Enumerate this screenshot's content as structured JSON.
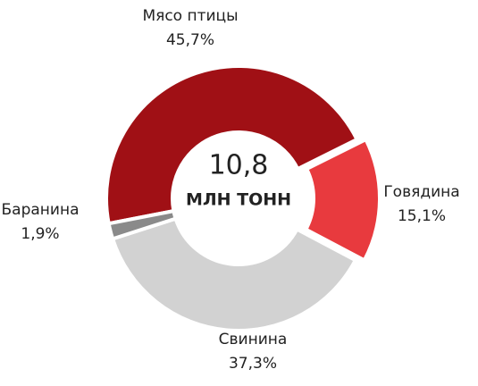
{
  "chart_data": {
    "type": "donut",
    "categories": [
      "Мясо птицы",
      "Говядина",
      "Свинина",
      "Баранина"
    ],
    "values": [
      45.7,
      15.1,
      37.3,
      1.9
    ],
    "value_labels": [
      "45,7%",
      "15,1%",
      "37,3%",
      "1,9%"
    ],
    "colors": [
      "#a01015",
      "#e83a3e",
      "#d2d2d2",
      "#8a8a8a"
    ],
    "center_text": "10,8",
    "center_label": "МЛН ТОНН"
  }
}
